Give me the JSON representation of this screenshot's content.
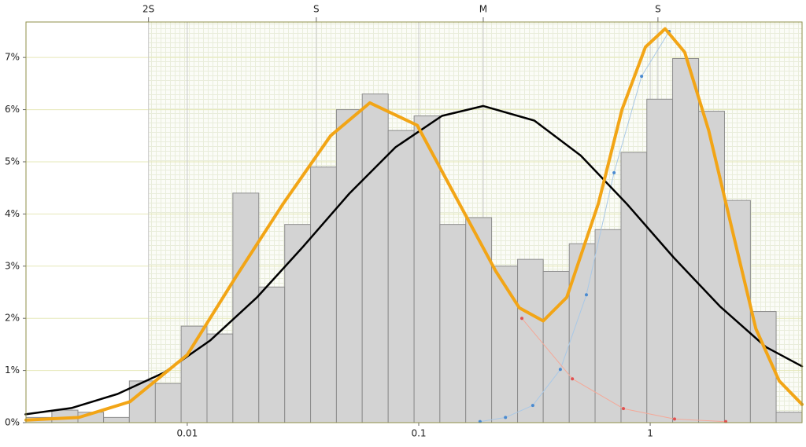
{
  "chart_data": {
    "type": "histogram",
    "xscale": "log",
    "xlim": [
      0.00201,
      4.53
    ],
    "ylim": [
      0,
      7.68
    ],
    "xticks": [
      0.01,
      0.1,
      1
    ],
    "yticks": [
      {
        "value": 0,
        "label": "0%"
      },
      {
        "value": 1,
        "label": "1%"
      },
      {
        "value": 2,
        "label": "2%"
      },
      {
        "value": 3,
        "label": "3%"
      },
      {
        "value": 4,
        "label": "4%"
      },
      {
        "value": 5,
        "label": "5%"
      },
      {
        "value": 6,
        "label": "6%"
      },
      {
        "value": 7,
        "label": "7%"
      }
    ],
    "top_ticks": [
      {
        "value": 0.0068,
        "label": "2S"
      },
      {
        "value": 0.0361,
        "label": "S"
      },
      {
        "value": 0.19,
        "label": "M"
      },
      {
        "value": 1.08,
        "label": "S"
      }
    ],
    "grid": true,
    "bar_color": "#d3d3d3",
    "bins": [
      0.00201,
      0.0026,
      0.00337,
      0.00435,
      0.00562,
      0.00728,
      0.00941,
      0.01217,
      0.01574,
      0.02037,
      0.02636,
      0.0341,
      0.0441,
      0.057,
      0.0738,
      0.0955,
      0.1234,
      0.1596,
      0.2065,
      0.2673,
      0.345,
      0.447,
      0.578,
      0.748,
      0.967,
      1.25,
      1.618,
      2.094,
      2.71,
      3.5,
      4.53
    ],
    "values": [
      0.1,
      0.24,
      0.2,
      0.1,
      0.8,
      0.75,
      1.85,
      1.7,
      4.4,
      2.6,
      3.8,
      4.9,
      6.0,
      6.3,
      5.6,
      5.88,
      3.8,
      3.93,
      3.0,
      3.13,
      2.9,
      3.43,
      3.7,
      5.18,
      6.2,
      6.98,
      5.97,
      4.26,
      2.13,
      0.2
    ],
    "curves": [
      {
        "color": "#a9c8e6",
        "marker_color": "#4a8ad0",
        "markers": true,
        "x": [
          0.184,
          0.237,
          0.311,
          0.409,
          0.53,
          0.698,
          0.918,
          1.207
        ],
        "values": [
          0.02,
          0.1,
          0.33,
          1.02,
          2.45,
          4.79,
          6.64,
          7.5
        ]
      },
      {
        "color": "#f4a898",
        "marker_color": "#e05050",
        "markers": true,
        "x": [
          0.279,
          0.461,
          0.766,
          1.274,
          2.12
        ],
        "values": [
          2.0,
          0.84,
          0.27,
          0.07,
          0.02
        ]
      },
      {
        "color": "#000000",
        "markers": false,
        "x": [
          0.002,
          0.00316,
          0.005,
          0.00794,
          0.0126,
          0.02,
          0.0316,
          0.0501,
          0.0794,
          0.126,
          0.19,
          0.316,
          0.501,
          0.794,
          1.26,
          2.0,
          3.16,
          4.53
        ],
        "values": [
          0.16,
          0.28,
          0.55,
          0.96,
          1.58,
          2.4,
          3.37,
          4.39,
          5.28,
          5.88,
          6.07,
          5.79,
          5.12,
          4.19,
          3.17,
          2.23,
          1.45,
          1.08
        ]
      },
      {
        "color": "#f2a516",
        "markers": false,
        "x": [
          0.00201,
          0.0034,
          0.00565,
          0.01,
          0.01625,
          0.026,
          0.0416,
          0.0615,
          0.0985,
          0.1456,
          0.2155,
          0.272,
          0.345,
          0.436,
          0.597,
          0.755,
          0.954,
          1.16,
          1.41,
          1.79,
          2.26,
          2.86,
          3.61,
          4.53
        ],
        "values": [
          0.05,
          0.1,
          0.4,
          1.3,
          2.8,
          4.2,
          5.5,
          6.13,
          5.7,
          4.3,
          2.9,
          2.2,
          1.95,
          2.4,
          4.2,
          6.0,
          7.2,
          7.55,
          7.1,
          5.6,
          3.7,
          1.8,
          0.8,
          0.35
        ]
      }
    ]
  }
}
